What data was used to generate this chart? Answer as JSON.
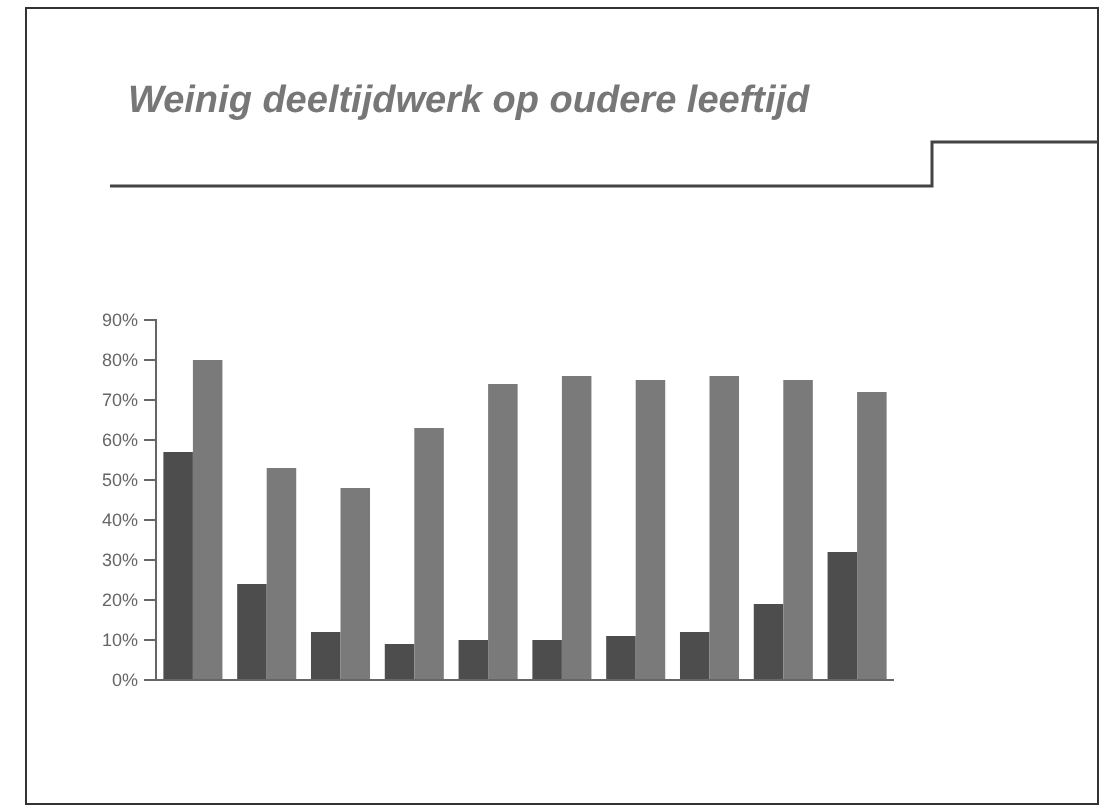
{
  "chart_data": {
    "type": "bar",
    "title": "Weinig deeltijdwerk op oudere leeftijd",
    "categories": [
      null,
      null,
      null,
      null,
      null,
      null,
      null,
      null,
      null,
      null
    ],
    "series": [
      {
        "color": "#4d4d4d",
        "values": [
          57,
          24,
          12,
          9,
          10,
          10,
          11,
          12,
          19,
          32
        ]
      },
      {
        "color": "#7a7a7a",
        "values": [
          80,
          53,
          48,
          63,
          74,
          76,
          75,
          76,
          75,
          72
        ]
      }
    ],
    "ylim": [
      0,
      90
    ],
    "yticks": [
      {
        "value": 0,
        "label": "0%"
      },
      {
        "value": 10,
        "label": "10%"
      },
      {
        "value": 20,
        "label": "20%"
      },
      {
        "value": 30,
        "label": "30%"
      },
      {
        "value": 40,
        "label": "40%"
      },
      {
        "value": 50,
        "label": "50%"
      },
      {
        "value": 60,
        "label": "60%"
      },
      {
        "value": 70,
        "label": "70%"
      },
      {
        "value": 80,
        "label": "80%"
      },
      {
        "value": 90,
        "label": "90%"
      }
    ],
    "grid": false
  }
}
